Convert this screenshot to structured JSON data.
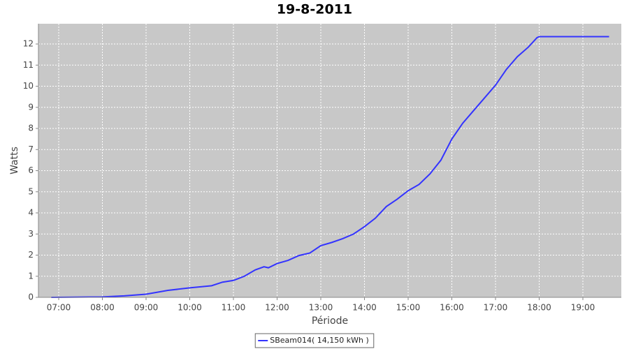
{
  "chart_data": {
    "type": "line",
    "title": "19-8-2011",
    "x_label": "Période",
    "y_label": "Watts",
    "x": [
      6.83,
      8.0,
      8.5,
      9.0,
      9.5,
      10.0,
      10.5,
      10.75,
      11.0,
      11.25,
      11.5,
      11.7,
      11.8,
      12.0,
      12.25,
      12.5,
      12.75,
      13.0,
      13.25,
      13.5,
      13.75,
      14.0,
      14.25,
      14.5,
      14.75,
      15.0,
      15.25,
      15.5,
      15.75,
      16.0,
      16.25,
      16.5,
      16.75,
      17.0,
      17.25,
      17.5,
      17.75,
      17.95,
      18.0,
      19.6
    ],
    "series": [
      {
        "name": "SBeam014( 14,150 kWh )",
        "color": "#3333ff",
        "values": [
          0,
          0.02,
          0.07,
          0.15,
          0.33,
          0.45,
          0.55,
          0.72,
          0.8,
          1.0,
          1.3,
          1.45,
          1.4,
          1.6,
          1.75,
          1.98,
          2.1,
          2.45,
          2.6,
          2.78,
          3.0,
          3.35,
          3.75,
          4.3,
          4.65,
          5.05,
          5.35,
          5.85,
          6.5,
          7.5,
          8.25,
          8.85,
          9.45,
          10.05,
          10.8,
          11.4,
          11.85,
          12.3,
          12.35,
          12.35
        ]
      }
    ],
    "xlim": [
      6.536,
      19.88
    ],
    "xticks": [
      {
        "value": 7,
        "label": "07:00"
      },
      {
        "value": 8,
        "label": "08:00"
      },
      {
        "value": 9,
        "label": "09:00"
      },
      {
        "value": 10,
        "label": "10:00"
      },
      {
        "value": 11,
        "label": "11:00"
      },
      {
        "value": 12,
        "label": "12:00"
      },
      {
        "value": 13,
        "label": "13:00"
      },
      {
        "value": 14,
        "label": "14:00"
      },
      {
        "value": 15,
        "label": "15:00"
      },
      {
        "value": 16,
        "label": "16:00"
      },
      {
        "value": 17,
        "label": "17:00"
      },
      {
        "value": 18,
        "label": "18:00"
      },
      {
        "value": 19,
        "label": "19:00"
      }
    ],
    "ylim": [
      0,
      12.96
    ],
    "yticks": [
      0,
      1,
      2,
      3,
      4,
      5,
      6,
      7,
      8,
      9,
      10,
      11,
      12
    ],
    "grid": true,
    "legend": "bottom"
  }
}
